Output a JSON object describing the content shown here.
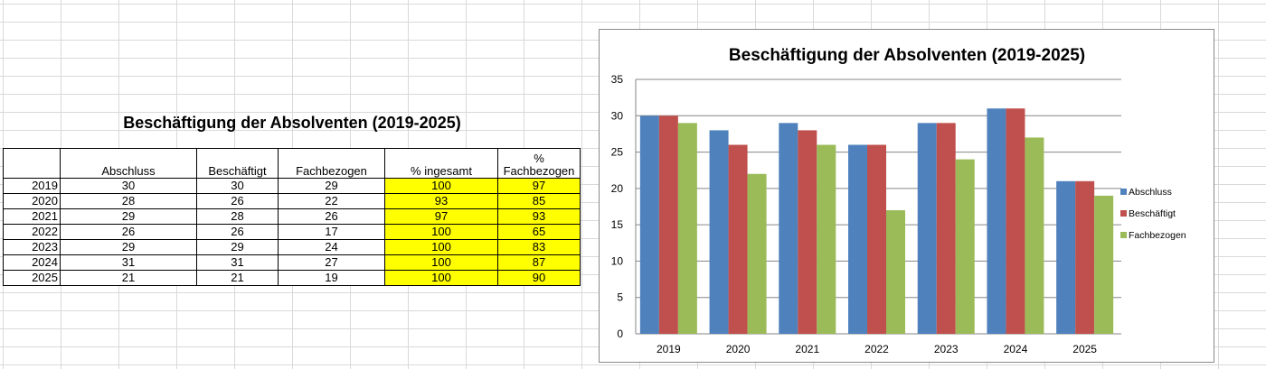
{
  "table": {
    "title": "Beschäftigung der Absolventen (2019-2025)",
    "headers": [
      "",
      "Abschluss",
      "Beschäftigt",
      "Fachbezogen",
      "% ingesamt",
      "%\nFachbezogen"
    ],
    "rows": [
      [
        "2019",
        "30",
        "30",
        "29",
        "100",
        "97"
      ],
      [
        "2020",
        "28",
        "26",
        "22",
        "93",
        "85"
      ],
      [
        "2021",
        "29",
        "28",
        "26",
        "97",
        "93"
      ],
      [
        "2022",
        "26",
        "26",
        "17",
        "100",
        "65"
      ],
      [
        "2023",
        "29",
        "29",
        "24",
        "100",
        "83"
      ],
      [
        "2024",
        "31",
        "31",
        "27",
        "100",
        "87"
      ],
      [
        "2025",
        "21",
        "21",
        "19",
        "100",
        "90"
      ]
    ],
    "highlight_color": "#ffff00"
  },
  "chart_data": {
    "type": "bar",
    "title": "Beschäftigung der Absolventen (2019-2025)",
    "categories": [
      "2019",
      "2020",
      "2021",
      "2022",
      "2023",
      "2024",
      "2025"
    ],
    "series": [
      {
        "name": "Abschluss",
        "color": "#4f81bd",
        "values": [
          30,
          28,
          29,
          26,
          29,
          31,
          21
        ]
      },
      {
        "name": "Beschäftigt",
        "color": "#c0504d",
        "values": [
          30,
          26,
          28,
          26,
          29,
          31,
          21
        ]
      },
      {
        "name": "Fachbezogen",
        "color": "#9bbb59",
        "values": [
          29,
          22,
          26,
          17,
          24,
          27,
          19
        ]
      }
    ],
    "ylim": [
      0,
      35
    ],
    "yticks": [
      0,
      5,
      10,
      15,
      20,
      25,
      30,
      35
    ],
    "grid": true,
    "legend": "right"
  }
}
